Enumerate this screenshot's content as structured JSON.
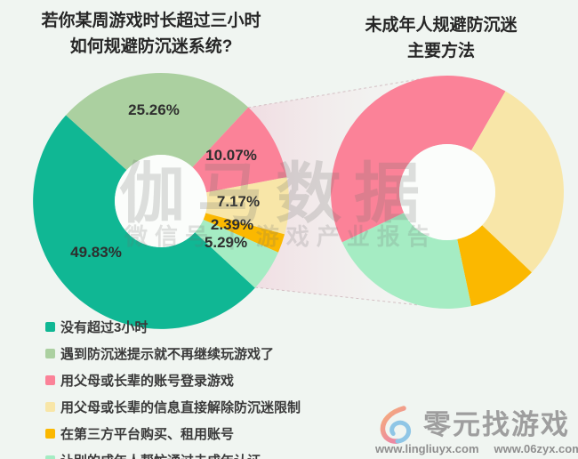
{
  "background": "#F0F5F1",
  "watermark": {
    "line1": "伽马数据",
    "line2": "微信号 | 游戏产业报告"
  },
  "chart_data": [
    {
      "type": "donut",
      "title": "若你某周游戏时长超过三小时 如何规避防沉迷系统?",
      "title_lines": [
        "若你某周游戏时长超过三小时",
        "如何规避防沉迷系统?"
      ],
      "legend_position": "bottom-left",
      "series": [
        {
          "label": "没有超过3小时",
          "value": 49.83,
          "display": "49.83%",
          "color": "#10B794"
        },
        {
          "label": "遇到防沉迷提示就不再继续玩游戏了",
          "value": 25.26,
          "display": "25.26%",
          "color": "#ABD0A0"
        },
        {
          "label": "用父母或长辈的账号登录游戏",
          "value": 10.07,
          "display": "10.07%",
          "color": "#FB8298"
        },
        {
          "label": "用父母或长辈的信息直接解除防沉迷限制",
          "value": 7.17,
          "display": "7.17%",
          "color": "#F8E6A8"
        },
        {
          "label": "在第三方平台购买、租用账号",
          "value": 2.39,
          "display": "2.39%",
          "color": "#FBB800"
        },
        {
          "label": "让别的成年人帮忙通过未成年认证",
          "value": 5.29,
          "display": "5.29%",
          "color": "#A5ECC3"
        }
      ]
    },
    {
      "type": "donut",
      "title": "未成年人规避防沉迷 主要方法",
      "title_lines": [
        "未成年人规避防沉迷",
        "主要方法"
      ],
      "note": "zoomed breakdown of the four avoidance methods from the left donut, normalized to 100%",
      "series": [
        {
          "label": "用父母或长辈的账号登录游戏",
          "value": 10.07,
          "color": "#FB8298"
        },
        {
          "label": "用父母或长辈的信息直接解除防沉迷限制",
          "value": 7.17,
          "color": "#F8E6A8"
        },
        {
          "label": "在第三方平台购买、租用账号",
          "value": 2.39,
          "color": "#FBB800"
        },
        {
          "label": "让别的成年人帮忙通过未成年认证",
          "value": 5.29,
          "color": "#A5ECC3"
        }
      ]
    }
  ],
  "footer": {
    "brand": "零元找游戏",
    "url_left": "www.lingliuyx.com",
    "url_right": "www.06zyx.com"
  }
}
